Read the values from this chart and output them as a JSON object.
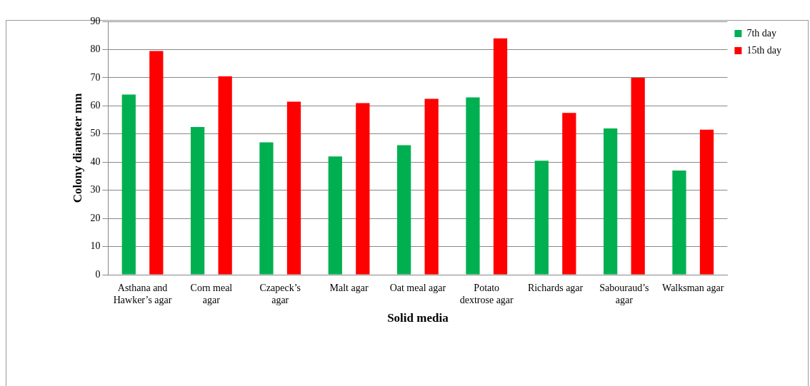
{
  "chart_data": {
    "type": "bar",
    "xlabel": "Solid media",
    "ylabel": "Colony diameter mm",
    "categories": [
      "Asthana and Hawker’s agar",
      "Corn meal agar",
      "Czapeck’s agar",
      "Malt agar",
      "Oat meal agar",
      "Potato dextrose agar",
      "Richards agar",
      "Sabouraud’s agar",
      "Walksman agar"
    ],
    "series": [
      {
        "name": "7th day",
        "color": "#00b050",
        "values": [
          64,
          52.5,
          47,
          42,
          46,
          63,
          40.5,
          52,
          37
        ]
      },
      {
        "name": "15th day",
        "color": "#ff0000",
        "values": [
          79.5,
          70.5,
          61.5,
          61,
          62.5,
          84,
          57.5,
          70,
          51.5
        ]
      }
    ],
    "ylim": [
      0,
      90
    ],
    "yticks": [
      0,
      10,
      20,
      30,
      40,
      50,
      60,
      70,
      80,
      90
    ],
    "grid": "y",
    "legend": "right"
  }
}
